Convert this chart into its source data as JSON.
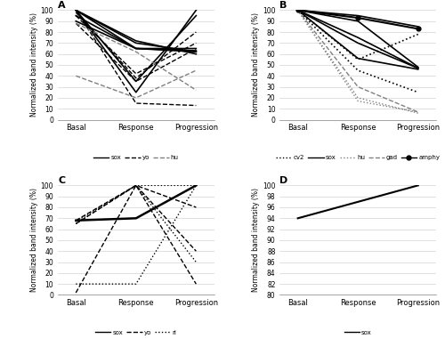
{
  "A": {
    "title": "A",
    "ylim": [
      0,
      100
    ],
    "yticks": [
      0,
      10,
      20,
      30,
      40,
      50,
      60,
      70,
      80,
      90,
      100
    ],
    "xlabel_ticks": [
      "Basal",
      "Response",
      "Progression"
    ],
    "ylabel": "Normalized band intensity (%)",
    "series": {
      "sox": {
        "style": "solid",
        "color": "black",
        "lw": 1.2,
        "lines": [
          [
            100,
            25,
            100
          ],
          [
            100,
            35,
            95
          ],
          [
            100,
            65,
            65
          ],
          [
            100,
            70,
            62
          ],
          [
            100,
            72,
            60
          ],
          [
            95,
            65,
            62
          ],
          [
            90,
            65,
            63
          ]
        ]
      },
      "yo": {
        "style": "dashed",
        "color": "black",
        "lw": 1.0,
        "lines": [
          [
            100,
            15,
            13
          ],
          [
            98,
            38,
            80
          ],
          [
            95,
            42,
            70
          ],
          [
            88,
            35,
            65
          ]
        ]
      },
      "hu": {
        "style": "dashed",
        "color": "gray",
        "lw": 1.0,
        "lines": [
          [
            40,
            20,
            45
          ],
          [
            88,
            62,
            27
          ]
        ]
      }
    },
    "legend": [
      {
        "label": "sox",
        "style": "solid",
        "color": "black"
      },
      {
        "label": "yo",
        "style": "dashed",
        "color": "black"
      },
      {
        "label": "hu",
        "style": "dashed",
        "color": "gray"
      }
    ]
  },
  "B": {
    "title": "B",
    "ylim": [
      0,
      100
    ],
    "yticks": [
      0,
      10,
      20,
      30,
      40,
      50,
      60,
      70,
      80,
      90,
      100
    ],
    "xlabel_ticks": [
      "Basal",
      "Response",
      "Progression"
    ],
    "ylabel": "Normalized band intensity (%)",
    "series": {
      "cv2": {
        "style": "dotted",
        "color": "black",
        "lw": 1.2,
        "lines": [
          [
            100,
            45,
            25
          ],
          [
            100,
            55,
            78
          ]
        ]
      },
      "sox": {
        "style": "solid",
        "color": "black",
        "lw": 1.2,
        "lines": [
          [
            100,
            95,
            85
          ],
          [
            100,
            90,
            48
          ],
          [
            100,
            70,
            47
          ],
          [
            100,
            75,
            47
          ],
          [
            100,
            56,
            46
          ]
        ]
      },
      "hu": {
        "style": "dotted",
        "color": "gray",
        "lw": 1.0,
        "lines": [
          [
            100,
            17,
            7
          ],
          [
            100,
            20,
            6
          ]
        ]
      },
      "gad": {
        "style": "dashed",
        "color": "gray",
        "lw": 1.0,
        "lines": [
          [
            100,
            30,
            7
          ]
        ]
      },
      "amphy": {
        "style": "solid",
        "color": "black",
        "lw": 1.5,
        "marker": "o",
        "lines": [
          [
            100,
            93,
            83
          ]
        ]
      }
    },
    "legend": [
      {
        "label": "cv2",
        "style": "dotted",
        "color": "black"
      },
      {
        "label": "sox",
        "style": "solid",
        "color": "black"
      },
      {
        "label": "hu",
        "style": "dotted",
        "color": "gray"
      },
      {
        "label": "gad",
        "style": "dashed",
        "color": "gray"
      },
      {
        "label": "amphy",
        "style": "solid",
        "color": "black",
        "marker": "o"
      }
    ]
  },
  "C": {
    "title": "C",
    "ylim": [
      0,
      100
    ],
    "yticks": [
      0,
      10,
      20,
      30,
      40,
      50,
      60,
      70,
      80,
      90,
      100
    ],
    "xlabel_ticks": [
      "Basal",
      "Response",
      "Progression"
    ],
    "ylabel": "Normalized band intensity (%)",
    "series": {
      "sox": {
        "style": "solid",
        "color": "black",
        "lw": 1.8,
        "lines": [
          [
            68,
            70,
            100
          ]
        ]
      },
      "yo": {
        "style": "dashed",
        "color": "black",
        "lw": 1.0,
        "lines": [
          [
            68,
            100,
            80
          ],
          [
            65,
            100,
            10
          ],
          [
            2,
            100,
            40
          ]
        ]
      },
      "ri": {
        "style": "dotted",
        "color": "black",
        "lw": 1.0,
        "lines": [
          [
            10,
            10,
            100
          ],
          [
            65,
            100,
            30
          ],
          [
            67,
            100,
            100
          ]
        ]
      }
    },
    "legend": [
      {
        "label": "sox",
        "style": "solid",
        "color": "black"
      },
      {
        "label": "yo",
        "style": "dashed",
        "color": "black"
      },
      {
        "label": "ri",
        "style": "dotted",
        "color": "black"
      }
    ]
  },
  "D": {
    "title": "D",
    "ylim": [
      80,
      100
    ],
    "yticks": [
      80,
      82,
      84,
      86,
      88,
      90,
      92,
      94,
      96,
      98,
      100
    ],
    "xlabel_ticks": [
      "Basal",
      "Response",
      "Progression"
    ],
    "ylabel": "Normalized band intensity (%)",
    "series": {
      "sox": {
        "style": "solid",
        "color": "black",
        "lw": 1.5,
        "lines": [
          [
            94,
            97,
            100
          ]
        ]
      }
    },
    "legend": [
      {
        "label": "sox",
        "style": "solid",
        "color": "black"
      }
    ]
  }
}
